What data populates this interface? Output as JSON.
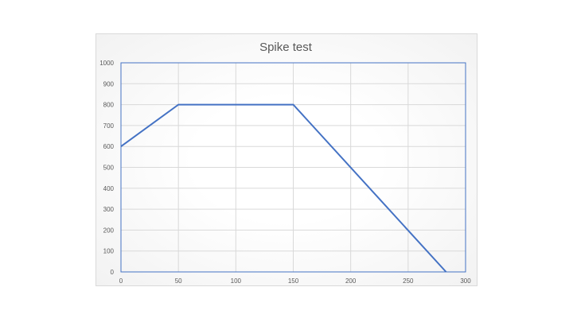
{
  "chart_data": {
    "type": "line",
    "title": "Spike test",
    "xlabel": "",
    "ylabel": "",
    "xlim": [
      0,
      300
    ],
    "ylim": [
      0,
      1000
    ],
    "x_ticks": [
      0,
      50,
      100,
      150,
      200,
      250,
      300
    ],
    "y_ticks": [
      0,
      100,
      200,
      300,
      400,
      500,
      600,
      700,
      800,
      900,
      1000
    ],
    "grid": true,
    "legend": "none",
    "series": [
      {
        "color": "#4472c4",
        "points": [
          {
            "x": 0,
            "y": 600
          },
          {
            "x": 50,
            "y": 800
          },
          {
            "x": 150,
            "y": 800
          },
          {
            "x": 283,
            "y": 0
          }
        ]
      }
    ],
    "colors": {
      "line": "#4472c4",
      "axis": "#4472c4",
      "grid": "#d9d9d9",
      "text": "#595959"
    }
  }
}
